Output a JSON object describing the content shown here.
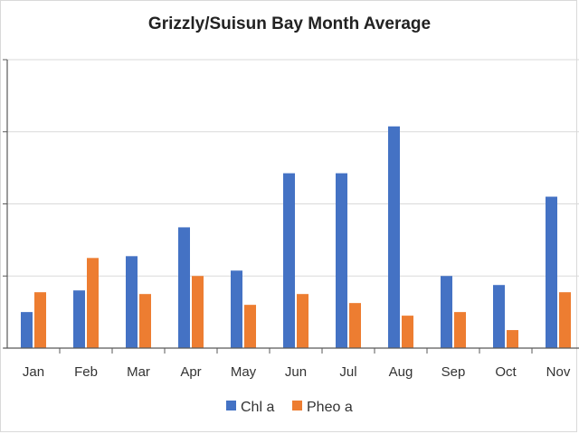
{
  "chart_data": {
    "type": "bar",
    "title": "Grizzly/Suisun Bay Month Average",
    "xlabel": "",
    "ylabel": "",
    "categories": [
      "Jan",
      "Feb",
      "Mar",
      "Apr",
      "May",
      "Jun",
      "Jul",
      "Aug",
      "Sep",
      "Oct",
      "Nov"
    ],
    "series": [
      {
        "name": "Chl a",
        "color": "#4472C4",
        "values": [
          1.0,
          1.6,
          2.55,
          3.35,
          2.15,
          4.85,
          4.85,
          6.15,
          2.0,
          1.75,
          4.2
        ]
      },
      {
        "name": "Pheo a",
        "color": "#ED7D31",
        "values": [
          1.55,
          2.5,
          1.5,
          2.0,
          1.2,
          1.5,
          1.25,
          0.9,
          1.0,
          0.5,
          1.55
        ]
      }
    ],
    "ylim": [
      0,
      8
    ],
    "y_gridlines": [
      2,
      4,
      6,
      8
    ],
    "grid": true,
    "legend": "bottom"
  }
}
